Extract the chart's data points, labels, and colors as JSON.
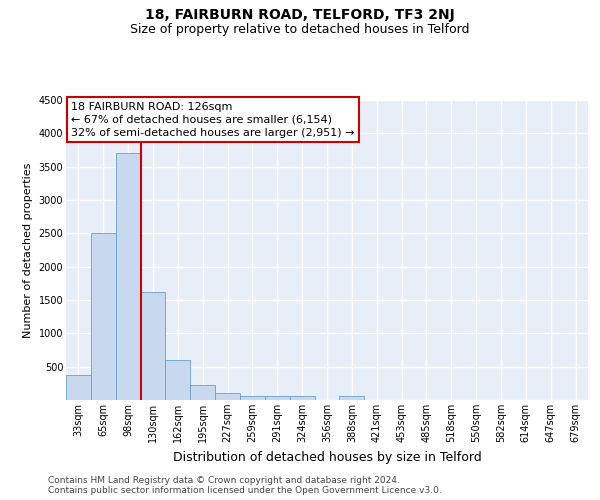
{
  "title": "18, FAIRBURN ROAD, TELFORD, TF3 2NJ",
  "subtitle": "Size of property relative to detached houses in Telford",
  "xlabel": "Distribution of detached houses by size in Telford",
  "ylabel": "Number of detached properties",
  "categories": [
    "33sqm",
    "65sqm",
    "98sqm",
    "130sqm",
    "162sqm",
    "195sqm",
    "227sqm",
    "259sqm",
    "291sqm",
    "324sqm",
    "356sqm",
    "388sqm",
    "421sqm",
    "453sqm",
    "485sqm",
    "518sqm",
    "550sqm",
    "582sqm",
    "614sqm",
    "647sqm",
    "679sqm"
  ],
  "values": [
    375,
    2500,
    3700,
    1620,
    600,
    230,
    110,
    65,
    65,
    55,
    0,
    55,
    0,
    0,
    0,
    0,
    0,
    0,
    0,
    0,
    0
  ],
  "bar_color": "#c8d8ef",
  "bar_edge_color": "#6a9ec8",
  "bg_color": "#e8eef8",
  "grid_color": "#ffffff",
  "vline_color": "#cc0000",
  "vline_position": 2.5,
  "annotation_line1": "18 FAIRBURN ROAD: 126sqm",
  "annotation_line2": "← 67% of detached houses are smaller (6,154)",
  "annotation_line3": "32% of semi-detached houses are larger (2,951) →",
  "annotation_box_edgecolor": "#cc0000",
  "ylim": [
    0,
    4500
  ],
  "yticks": [
    0,
    500,
    1000,
    1500,
    2000,
    2500,
    3000,
    3500,
    4000,
    4500
  ],
  "footer_line1": "Contains HM Land Registry data © Crown copyright and database right 2024.",
  "footer_line2": "Contains public sector information licensed under the Open Government Licence v3.0.",
  "title_fontsize": 10,
  "subtitle_fontsize": 9,
  "xlabel_fontsize": 9,
  "ylabel_fontsize": 8,
  "tick_fontsize": 7,
  "footer_fontsize": 6.5,
  "annot_fontsize": 8
}
